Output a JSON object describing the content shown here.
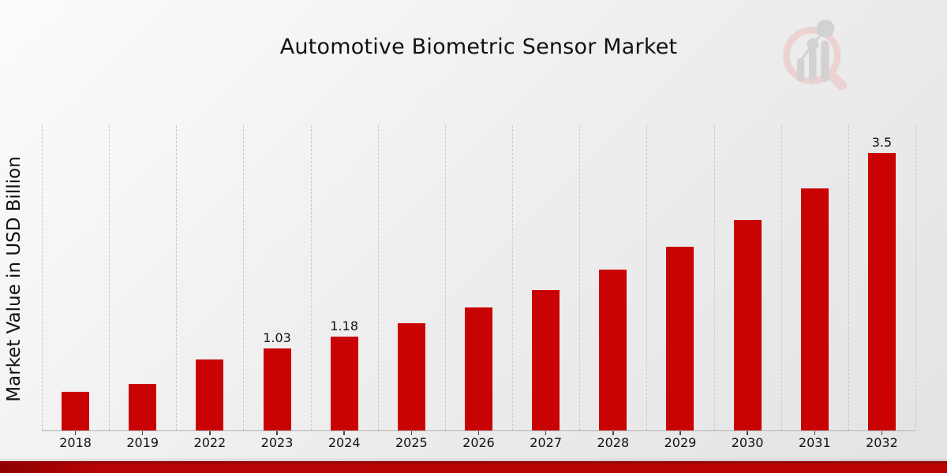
{
  "page": {
    "title": "Automotive Biometric Sensor Market"
  },
  "chart_data": {
    "type": "bar",
    "title": "Automotive Biometric Sensor Market",
    "xlabel": "",
    "ylabel": "Market Value in USD Billion",
    "categories": [
      "2018",
      "2019",
      "2022",
      "2023",
      "2024",
      "2025",
      "2026",
      "2027",
      "2028",
      "2029",
      "2030",
      "2031",
      "2032"
    ],
    "values": [
      0.49,
      0.59,
      0.9,
      1.03,
      1.18,
      1.35,
      1.55,
      1.77,
      2.03,
      2.32,
      2.66,
      3.05,
      3.5
    ],
    "value_labels": [
      "",
      "",
      "",
      "1.03",
      "1.18",
      "",
      "",
      "",
      "",
      "",
      "",
      "",
      "3.5"
    ],
    "ylim": [
      0,
      3.85
    ],
    "grid": "vertical-dashed",
    "legend": "none",
    "bar_color": "#c90303",
    "background": "light-gray-gradient"
  },
  "footer": {
    "accent_bar_color": "#b60303"
  },
  "watermark": {
    "icon": "magnifier-bar-chart-logo",
    "ring_color": "#ecd2d2",
    "bars_color": "#d2d2d2"
  }
}
